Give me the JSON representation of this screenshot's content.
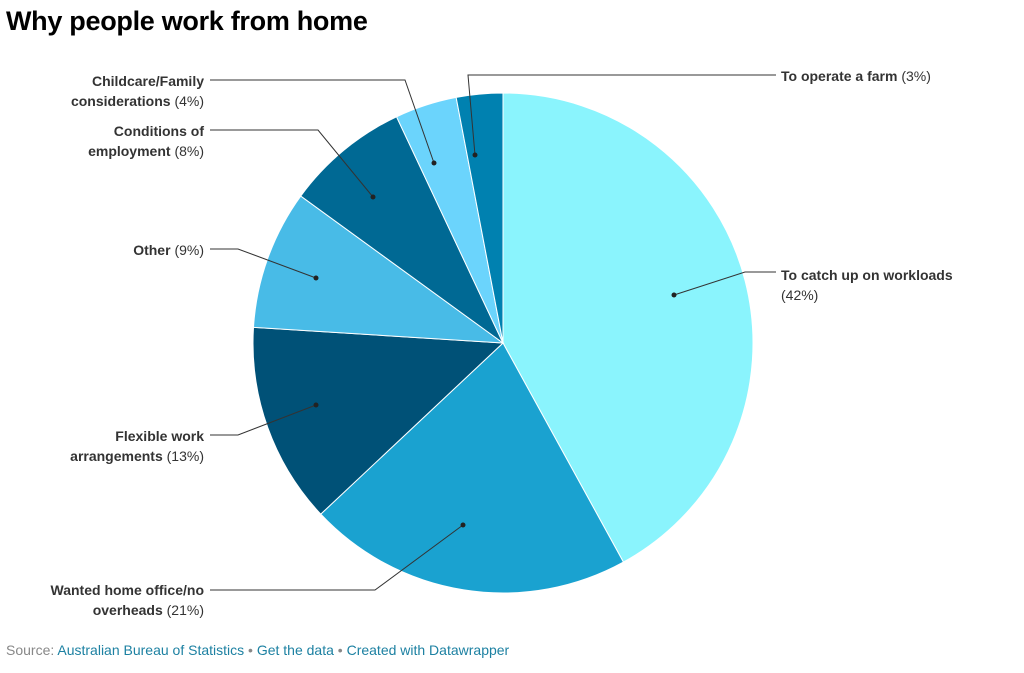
{
  "chart_data": {
    "type": "pie",
    "title": "Why people work from home",
    "slices": [
      {
        "label_line1": "To catch up on workloads",
        "label_line2": "",
        "pct_text": "(42%)",
        "value": 42,
        "color": "#8af4fd"
      },
      {
        "label_line1": "Wanted home office/no",
        "label_line2": "overheads",
        "pct_text": "(21%)",
        "value": 21,
        "color": "#1aa2d0"
      },
      {
        "label_line1": "Flexible work",
        "label_line2": "arrangements",
        "pct_text": "(13%)",
        "value": 13,
        "color": "#005177"
      },
      {
        "label_line1": "Other",
        "label_line2": "",
        "pct_text": "(9%)",
        "value": 9,
        "color": "#48bbe7"
      },
      {
        "label_line1": "Conditions of",
        "label_line2": "employment",
        "pct_text": "(8%)",
        "value": 8,
        "color": "#006994"
      },
      {
        "label_line1": "Childcare/Family",
        "label_line2": "considerations",
        "pct_text": "(4%)",
        "value": 4,
        "color": "#6bd4fc"
      },
      {
        "label_line1": "To operate a farm",
        "label_line2": "",
        "pct_text": "(3%)",
        "value": 3,
        "color": "#0081b0"
      }
    ]
  },
  "footer": {
    "source_prefix": "Source:",
    "source_link": "Australian Bureau of Statistics",
    "get_data": "Get the data",
    "created_with": "Created with Datawrapper",
    "separator": "•"
  }
}
